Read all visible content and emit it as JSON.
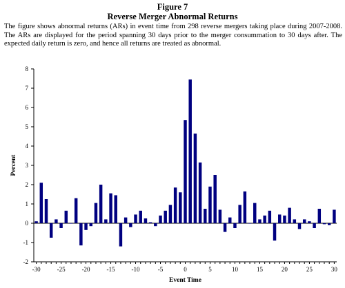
{
  "figure_label": "Figure 7",
  "title": "Reverse Merger Abnormal Returns",
  "caption": "The figure shows abnormal returns (ARs) in event time from 298 reverse mergers taking place during 2007-2008. The ARs are displayed for the period spanning 30 days prior to the merger consummation to 30 days after. The expected daily return is zero, and hence all returns are treated as abnormal.",
  "colors": {
    "bar": "#000080",
    "axis": "#000000"
  },
  "chart_data": {
    "type": "bar",
    "xlabel": "Event Time",
    "ylabel": "Percent",
    "ylim": [
      -2,
      8
    ],
    "xlim": [
      -30,
      30
    ],
    "yticks": [
      -2,
      -1,
      0,
      1,
      2,
      3,
      4,
      5,
      6,
      7,
      8
    ],
    "xticks": [
      -30,
      -25,
      -20,
      -15,
      -10,
      -5,
      0,
      5,
      10,
      15,
      20,
      25,
      30
    ],
    "grid": false,
    "legend": "none",
    "x": [
      -30,
      -29,
      -28,
      -27,
      -26,
      -25,
      -24,
      -23,
      -22,
      -21,
      -20,
      -19,
      -18,
      -17,
      -16,
      -15,
      -14,
      -13,
      -12,
      -11,
      -10,
      -9,
      -8,
      -7,
      -6,
      -5,
      -4,
      -3,
      -2,
      -1,
      0,
      1,
      2,
      3,
      4,
      5,
      6,
      7,
      8,
      9,
      10,
      11,
      12,
      13,
      14,
      15,
      16,
      17,
      18,
      19,
      20,
      21,
      22,
      23,
      24,
      25,
      26,
      27,
      28,
      29,
      30
    ],
    "values": [
      0.1,
      2.1,
      1.25,
      -0.75,
      0.2,
      -0.25,
      0.65,
      0.0,
      1.3,
      -1.15,
      -0.35,
      -0.15,
      1.05,
      2.0,
      0.2,
      1.55,
      1.45,
      -1.2,
      0.3,
      -0.2,
      0.45,
      0.65,
      0.25,
      0.05,
      -0.15,
      0.4,
      0.65,
      0.95,
      1.85,
      1.6,
      5.35,
      7.45,
      4.65,
      3.15,
      0.75,
      1.9,
      2.5,
      0.7,
      -0.45,
      0.3,
      -0.25,
      0.95,
      1.65,
      0.0,
      1.05,
      0.2,
      0.4,
      0.65,
      -0.9,
      0.45,
      0.4,
      0.8,
      0.2,
      -0.3,
      0.2,
      0.1,
      -0.25,
      0.75,
      -0.05,
      -0.1,
      0.7
    ]
  }
}
